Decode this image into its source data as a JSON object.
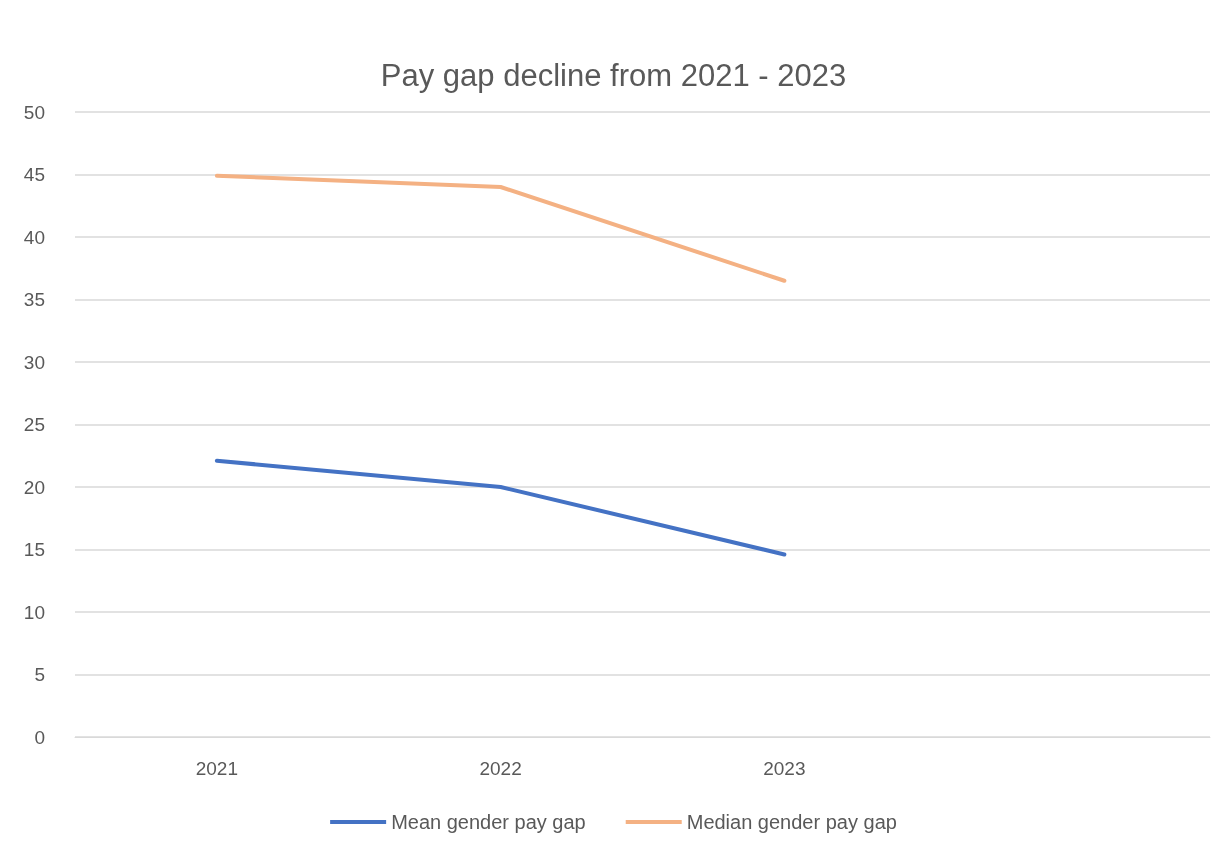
{
  "chart_data": {
    "type": "line",
    "title": "Pay gap decline from 2021 - 2023",
    "categories": [
      "2021",
      "2022",
      "2023",
      null
    ],
    "series": [
      {
        "name": "Mean gender pay gap",
        "color": "#4472c4",
        "values": [
          22.1,
          20.0,
          14.6,
          null
        ]
      },
      {
        "name": "Median gender pay gap",
        "color": "#f4b183",
        "values": [
          44.9,
          44.0,
          36.5,
          null
        ]
      }
    ],
    "ylim": [
      0,
      50
    ],
    "yticks": [
      0,
      5,
      10,
      15,
      20,
      25,
      30,
      35,
      40,
      45,
      50
    ],
    "grid": "y",
    "legend": "bottom",
    "marker": "none",
    "line_style": "solid"
  }
}
